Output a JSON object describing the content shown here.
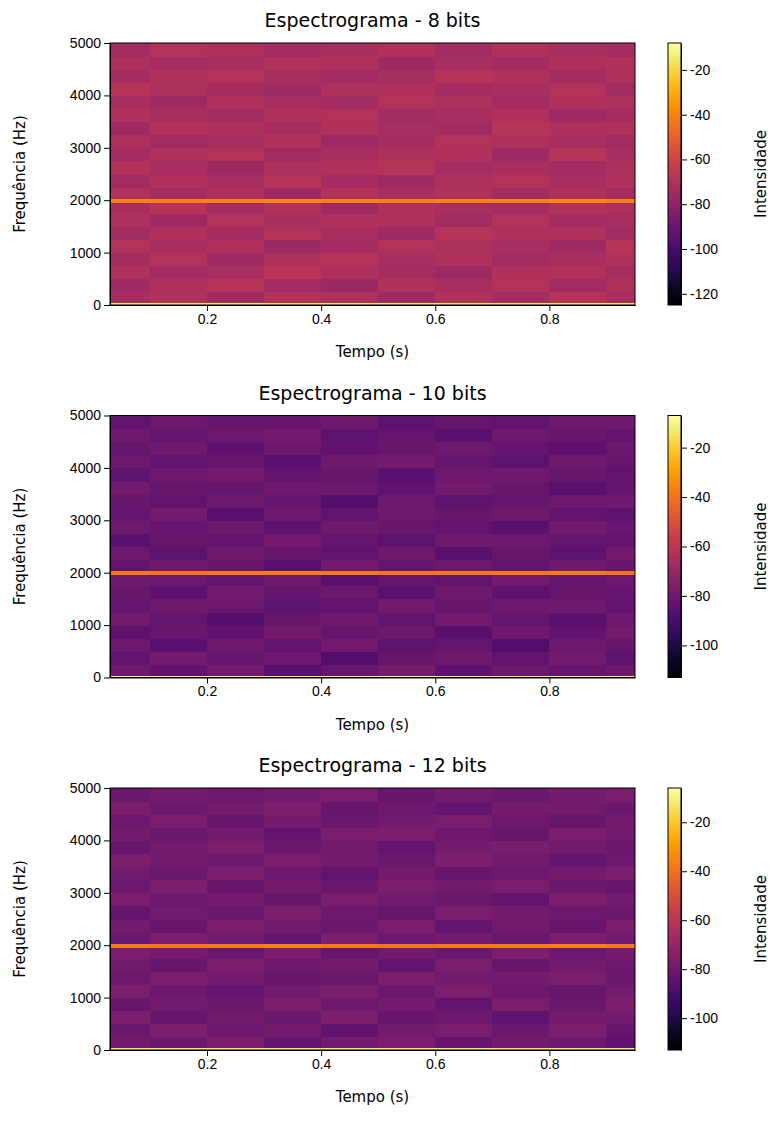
{
  "chart_data": [
    {
      "type": "heatmap",
      "title": "Espectrograma - 8 bits",
      "x_label": "Tempo (s)",
      "y_label": "Frequência (Hz)",
      "xlim": [
        0.03,
        0.95
      ],
      "ylim": [
        0,
        5000
      ],
      "xticks": [
        0.2,
        0.4,
        0.6,
        0.8
      ],
      "yticks": [
        0,
        1000,
        2000,
        3000,
        4000,
        5000
      ],
      "color": "inferno",
      "x": [
        0.03,
        0.1,
        0.2,
        0.3,
        0.4,
        0.5,
        0.6,
        0.7,
        0.8,
        0.9,
        0.95
      ],
      "y": [
        0,
        40,
        250,
        500,
        750,
        1000,
        1250,
        1500,
        1750,
        1960,
        2040,
        2250,
        2500,
        2750,
        3000,
        3250,
        3500,
        3750,
        4000,
        4250,
        4500,
        4750,
        5000
      ],
      "cells": [
        [
          -14,
          -15,
          -14,
          -16,
          -15,
          -14,
          -15,
          -16,
          -14,
          -15
        ],
        [
          -72,
          -70,
          -74,
          -69,
          -71,
          -75,
          -70,
          -73,
          -68,
          -72
        ],
        [
          -75,
          -71,
          -68,
          -73,
          -76,
          -70,
          -72,
          -69,
          -74,
          -71
        ],
        [
          -70,
          -74,
          -72,
          -67,
          -71,
          -73,
          -76,
          -70,
          -69,
          -73
        ],
        [
          -73,
          -69,
          -75,
          -71,
          -68,
          -72,
          -70,
          -74,
          -72,
          -70
        ],
        [
          -69,
          -72,
          -70,
          -76,
          -73,
          -69,
          -71,
          -72,
          -75,
          -68
        ],
        [
          -74,
          -70,
          -73,
          -69,
          -72,
          -75,
          -68,
          -71,
          -70,
          -74
        ],
        [
          -71,
          -75,
          -69,
          -72,
          -70,
          -71,
          -74,
          -69,
          -73,
          -72
        ],
        [
          -72,
          -68,
          -74,
          -70,
          -75,
          -70,
          -72,
          -73,
          -69,
          -71
        ],
        [
          -40,
          -41,
          -40,
          -39,
          -40,
          -41,
          -40,
          -40,
          -39,
          -41
        ],
        [
          -70,
          -73,
          -71,
          -75,
          -69,
          -72,
          -70,
          -74,
          -71,
          -73
        ],
        [
          -74,
          -70,
          -72,
          -68,
          -73,
          -75,
          -71,
          -69,
          -72,
          -70
        ],
        [
          -69,
          -72,
          -75,
          -71,
          -70,
          -68,
          -73,
          -72,
          -74,
          -71
        ],
        [
          -73,
          -71,
          -69,
          -74,
          -72,
          -71,
          -70,
          -75,
          -68,
          -72
        ],
        [
          -71,
          -74,
          -72,
          -70,
          -75,
          -73,
          -69,
          -71,
          -72,
          -74
        ],
        [
          -75,
          -69,
          -71,
          -73,
          -70,
          -72,
          -74,
          -68,
          -71,
          -70
        ],
        [
          -70,
          -72,
          -74,
          -71,
          -69,
          -74,
          -72,
          -70,
          -75,
          -73
        ],
        [
          -72,
          -75,
          -70,
          -72,
          -74,
          -69,
          -71,
          -73,
          -70,
          -71
        ],
        [
          -68,
          -71,
          -73,
          -75,
          -71,
          -70,
          -73,
          -72,
          -69,
          -74
        ],
        [
          -73,
          -70,
          -69,
          -72,
          -74,
          -72,
          -68,
          -71,
          -73,
          -70
        ],
        [
          -71,
          -73,
          -72,
          -69,
          -70,
          -75,
          -72,
          -74,
          -71,
          -69
        ],
        [
          -74,
          -69,
          -71,
          -73,
          -72,
          -70,
          -74,
          -70,
          -72,
          -73
        ]
      ],
      "colorbar": {
        "label": "Intensidade",
        "range": [
          -125,
          -8
        ],
        "ticks": [
          -120,
          -100,
          -80,
          -60,
          -40,
          -20
        ]
      }
    },
    {
      "type": "heatmap",
      "title": "Espectrograma - 10 bits",
      "x_label": "Tempo (s)",
      "y_label": "Frequência (Hz)",
      "xlim": [
        0.03,
        0.95
      ],
      "ylim": [
        0,
        5000
      ],
      "xticks": [
        0.2,
        0.4,
        0.6,
        0.8
      ],
      "yticks": [
        0,
        1000,
        2000,
        3000,
        4000,
        5000
      ],
      "color": "inferno",
      "x": [
        0.03,
        0.1,
        0.2,
        0.3,
        0.4,
        0.5,
        0.6,
        0.7,
        0.8,
        0.9,
        0.95
      ],
      "y": [
        0,
        40,
        250,
        500,
        750,
        1000,
        1250,
        1500,
        1750,
        1960,
        2040,
        2250,
        2500,
        2750,
        3000,
        3250,
        3500,
        3750,
        4000,
        4250,
        4500,
        4750,
        5000
      ],
      "cells": [
        [
          -12,
          -13,
          -12,
          -14,
          -13,
          -12,
          -13,
          -14,
          -12,
          -13
        ],
        [
          -80,
          -84,
          -79,
          -86,
          -82,
          -78,
          -85,
          -81,
          -83,
          -80
        ],
        [
          -84,
          -79,
          -83,
          -81,
          -87,
          -82,
          -80,
          -84,
          -79,
          -85
        ],
        [
          -81,
          -86,
          -80,
          -84,
          -79,
          -85,
          -83,
          -88,
          -81,
          -82
        ],
        [
          -85,
          -82,
          -84,
          -79,
          -83,
          -81,
          -86,
          -80,
          -84,
          -79
        ],
        [
          -79,
          -83,
          -87,
          -82,
          -80,
          -84,
          -79,
          -83,
          -86,
          -81
        ],
        [
          -83,
          -80,
          -81,
          -85,
          -84,
          -79,
          -82,
          -81,
          -80,
          -84
        ],
        [
          -82,
          -85,
          -79,
          -83,
          -81,
          -86,
          -80,
          -85,
          -82,
          -83
        ],
        [
          -80,
          -81,
          -84,
          -80,
          -86,
          -82,
          -84,
          -79,
          -83,
          -81
        ],
        [
          -38,
          -39,
          -38,
          -37,
          -38,
          -39,
          -38,
          -38,
          -37,
          -39
        ],
        [
          -84,
          -80,
          -82,
          -86,
          -79,
          -83,
          -81,
          -84,
          -80,
          -82
        ],
        [
          -81,
          -85,
          -80,
          -82,
          -84,
          -80,
          -86,
          -82,
          -85,
          -79
        ],
        [
          -86,
          -82,
          -84,
          -79,
          -83,
          -85,
          -80,
          -81,
          -83,
          -84
        ],
        [
          -80,
          -83,
          -81,
          -85,
          -80,
          -82,
          -84,
          -86,
          -79,
          -82
        ],
        [
          -83,
          -79,
          -86,
          -81,
          -84,
          -80,
          -82,
          -80,
          -84,
          -85
        ],
        [
          -82,
          -84,
          -80,
          -83,
          -87,
          -81,
          -85,
          -83,
          -81,
          -80
        ],
        [
          -79,
          -82,
          -83,
          -80,
          -81,
          -84,
          -79,
          -82,
          -86,
          -83
        ],
        [
          -85,
          -81,
          -79,
          -84,
          -82,
          -86,
          -81,
          -80,
          -82,
          -84
        ],
        [
          -81,
          -84,
          -82,
          -86,
          -80,
          -79,
          -83,
          -85,
          -80,
          -82
        ],
        [
          -83,
          -80,
          -85,
          -81,
          -84,
          -82,
          -80,
          -83,
          -85,
          -81
        ],
        [
          -80,
          -83,
          -81,
          -79,
          -85,
          -83,
          -86,
          -81,
          -82,
          -84
        ],
        [
          -84,
          -81,
          -83,
          -82,
          -80,
          -85,
          -82,
          -84,
          -81,
          -80
        ]
      ],
      "colorbar": {
        "label": "Intensidade",
        "range": [
          -113,
          -7
        ],
        "ticks": [
          -100,
          -80,
          -60,
          -40,
          -20
        ]
      }
    },
    {
      "type": "heatmap",
      "title": "Espectrograma - 12 bits",
      "x_label": "Tempo (s)",
      "y_label": "Frequência (Hz)",
      "xlim": [
        0.03,
        0.95
      ],
      "ylim": [
        0,
        5000
      ],
      "xticks": [
        0.2,
        0.4,
        0.6,
        0.8
      ],
      "yticks": [
        0,
        1000,
        2000,
        3000,
        4000,
        5000
      ],
      "color": "inferno",
      "x": [
        0.03,
        0.1,
        0.2,
        0.3,
        0.4,
        0.5,
        0.6,
        0.7,
        0.8,
        0.9,
        0.95
      ],
      "y": [
        0,
        40,
        250,
        500,
        750,
        1000,
        1250,
        1500,
        1750,
        1960,
        2040,
        2250,
        2500,
        2750,
        3000,
        3250,
        3500,
        3750,
        4000,
        4250,
        4500,
        4750,
        5000
      ],
      "cells": [
        [
          -12,
          -13,
          -12,
          -13,
          -12,
          -13,
          -12,
          -14,
          -12,
          -13
        ],
        [
          -78,
          -81,
          -76,
          -83,
          -79,
          -77,
          -82,
          -78,
          -80,
          -84
        ],
        [
          -81,
          -76,
          -80,
          -78,
          -84,
          -79,
          -77,
          -81,
          -76,
          -82
        ],
        [
          -77,
          -82,
          -79,
          -81,
          -76,
          -82,
          -80,
          -84,
          -78,
          -79
        ],
        [
          -82,
          -79,
          -81,
          -76,
          -80,
          -78,
          -83,
          -77,
          -81,
          -76
        ],
        [
          -76,
          -80,
          -83,
          -79,
          -77,
          -81,
          -76,
          -80,
          -82,
          -78
        ],
        [
          -80,
          -77,
          -78,
          -82,
          -81,
          -76,
          -79,
          -78,
          -77,
          -81
        ],
        [
          -79,
          -82,
          -76,
          -80,
          -78,
          -83,
          -77,
          -82,
          -79,
          -80
        ],
        [
          -77,
          -78,
          -81,
          -77,
          -82,
          -79,
          -81,
          -76,
          -80,
          -78
        ],
        [
          -37,
          -38,
          -37,
          -36,
          -37,
          -38,
          -37,
          -37,
          -36,
          -38
        ],
        [
          -81,
          -77,
          -79,
          -83,
          -76,
          -80,
          -78,
          -81,
          -77,
          -79
        ],
        [
          -78,
          -82,
          -77,
          -79,
          -81,
          -77,
          -83,
          -79,
          -82,
          -76
        ],
        [
          -83,
          -79,
          -81,
          -76,
          -80,
          -82,
          -77,
          -78,
          -80,
          -81
        ],
        [
          -77,
          -80,
          -78,
          -82,
          -77,
          -79,
          -81,
          -83,
          -76,
          -79
        ],
        [
          -80,
          -76,
          -82,
          -78,
          -81,
          -77,
          -79,
          -77,
          -81,
          -82
        ],
        [
          -79,
          -81,
          -77,
          -80,
          -83,
          -78,
          -82,
          -80,
          -78,
          -77
        ],
        [
          -76,
          -79,
          -80,
          -77,
          -78,
          -81,
          -76,
          -79,
          -83,
          -80
        ],
        [
          -82,
          -78,
          -76,
          -81,
          -79,
          -83,
          -78,
          -77,
          -79,
          -81
        ],
        [
          -78,
          -81,
          -79,
          -83,
          -77,
          -76,
          -80,
          -82,
          -77,
          -79
        ],
        [
          -80,
          -77,
          -82,
          -78,
          -81,
          -79,
          -77,
          -80,
          -82,
          -78
        ],
        [
          -77,
          -80,
          -78,
          -76,
          -82,
          -80,
          -83,
          -78,
          -79,
          -81
        ],
        [
          -81,
          -78,
          -80,
          -79,
          -77,
          -82,
          -79,
          -81,
          -78,
          -77
        ]
      ],
      "colorbar": {
        "label": "Intensidade",
        "range": [
          -113,
          -6
        ],
        "ticks": [
          -100,
          -80,
          -60,
          -40,
          -20
        ]
      }
    }
  ]
}
